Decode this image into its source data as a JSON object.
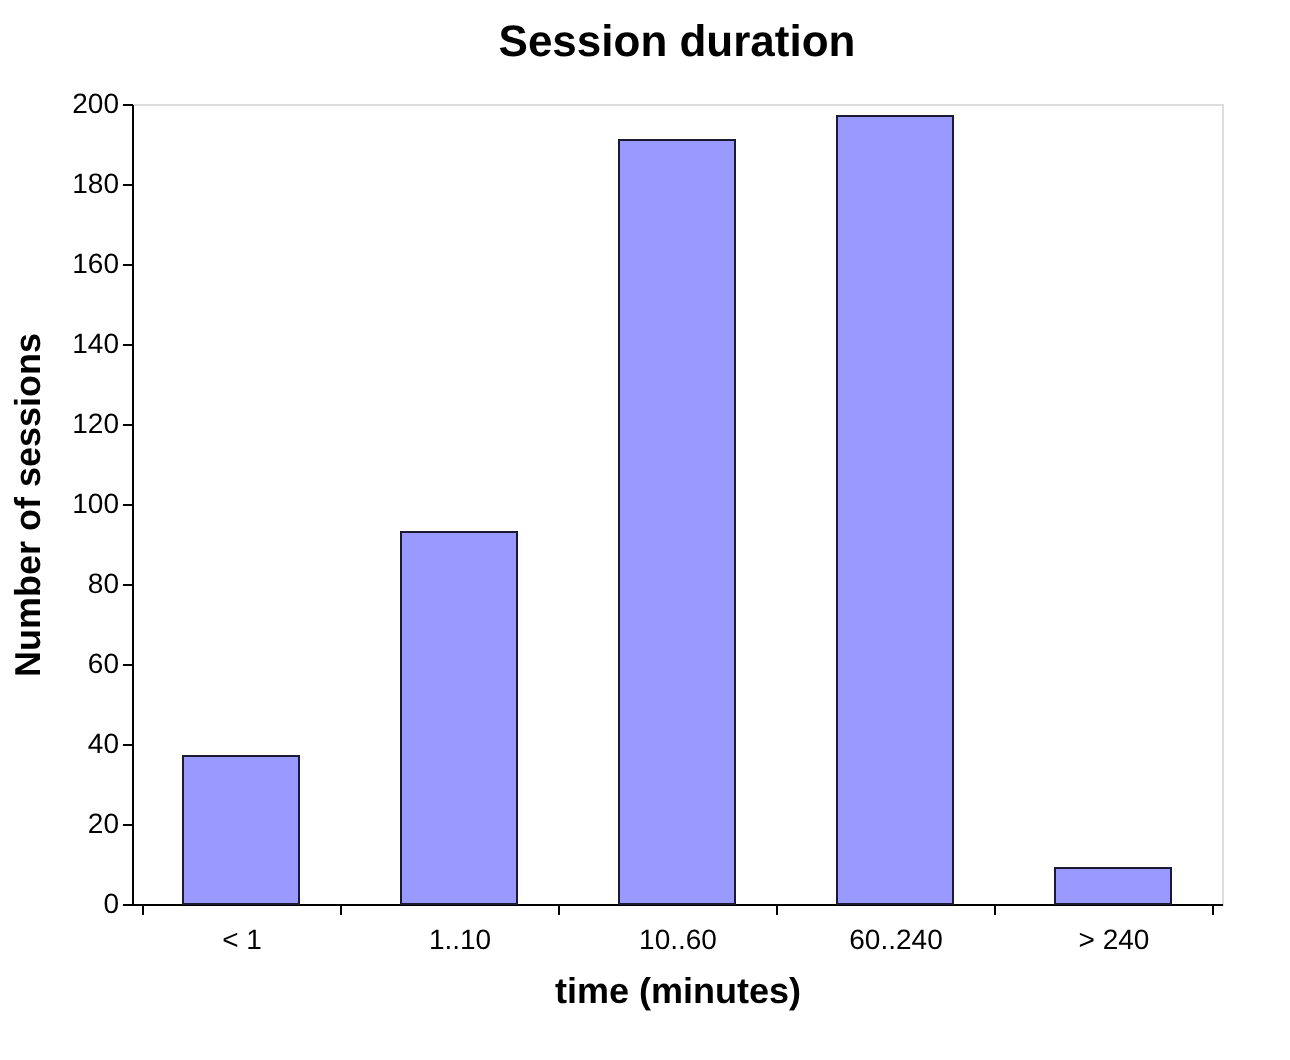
{
  "chart_data": {
    "type": "bar",
    "title": "Session duration",
    "xlabel": "time (minutes)",
    "ylabel": "Number of sessions",
    "categories": [
      "< 1",
      "1..10",
      "10..60",
      "60..240",
      "> 240"
    ],
    "values": [
      37,
      93,
      191,
      197,
      9
    ],
    "color": "#9999ff",
    "ylim": [
      0,
      200
    ],
    "yticks": [
      0,
      20,
      40,
      60,
      80,
      100,
      120,
      140,
      160,
      180,
      200
    ],
    "grid": false,
    "legend": false
  }
}
